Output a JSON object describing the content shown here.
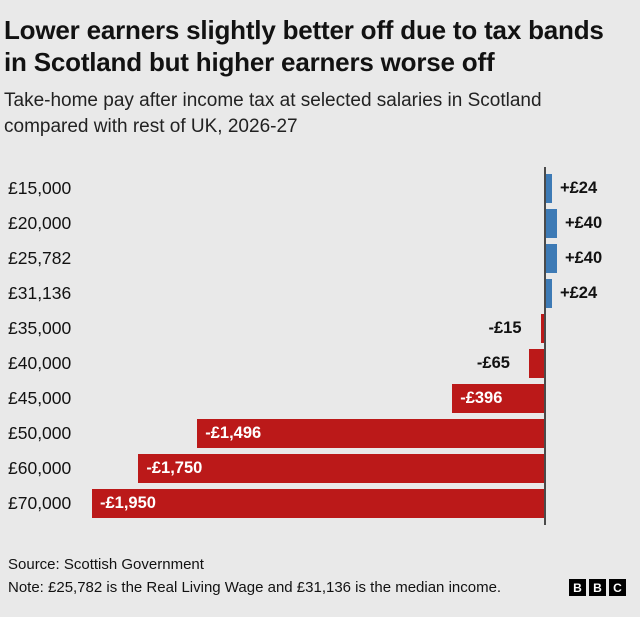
{
  "header": {
    "title": "Lower earners slightly better off due to tax bands in Scotland but higher earners worse off",
    "subtitle": "Take-home pay after income tax at selected salaries in Scotland compared with rest of UK, 2026-27"
  },
  "chart_data": {
    "type": "bar",
    "orientation": "horizontal",
    "categories": [
      "£15,000",
      "£20,000",
      "£25,782",
      "£31,136",
      "£35,000",
      "£40,000",
      "£45,000",
      "£50,000",
      "£60,000",
      "£70,000"
    ],
    "values": [
      24,
      40,
      40,
      24,
      -15,
      -65,
      -396,
      -1496,
      -1750,
      -1950
    ],
    "value_labels": [
      "+£24",
      "+£40",
      "+£40",
      "+£24",
      "-£15",
      "-£65",
      "-£396",
      "-£1,496",
      "-£1,750",
      "-£1,950"
    ],
    "xlim": [
      -1950,
      40
    ],
    "positive_color": "#3d7ab5",
    "negative_color": "#bb1919",
    "grid": false,
    "legend": "none",
    "zero_axis": true
  },
  "footer": {
    "source": "Source: Scottish Government",
    "note": "Note: £25,782 is the Real Living Wage and £31,136 is the median income.",
    "logo_letters": [
      "B",
      "B",
      "C"
    ]
  }
}
